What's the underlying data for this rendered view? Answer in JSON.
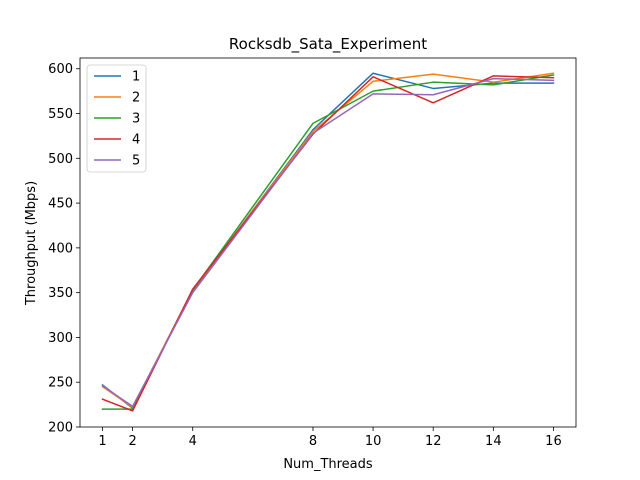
{
  "chart_data": {
    "type": "line",
    "title": "Rocksdb_Sata_Experiment",
    "xlabel": "Num_Threads",
    "ylabel": "Throughput (Mbps)",
    "x": [
      1,
      2,
      4,
      8,
      10,
      12,
      14,
      16
    ],
    "xticks": [
      1,
      2,
      4,
      8,
      10,
      12,
      14,
      16
    ],
    "yticks": [
      200,
      250,
      300,
      350,
      400,
      450,
      500,
      550,
      600
    ],
    "xlim": [
      0.25,
      16.75
    ],
    "ylim": [
      200,
      612
    ],
    "grid": false,
    "legend_position": "upper-left",
    "series": [
      {
        "name": "1",
        "color": "#1f77b4",
        "values": [
          247,
          221,
          352,
          532,
          595,
          578,
          584,
          584
        ]
      },
      {
        "name": "2",
        "color": "#ff7f0e",
        "values": [
          245,
          222,
          353,
          530,
          586,
          594,
          585,
          595
        ]
      },
      {
        "name": "3",
        "color": "#2ca02c",
        "values": [
          220,
          220,
          353,
          539,
          575,
          585,
          582,
          593
        ]
      },
      {
        "name": "4",
        "color": "#d62728",
        "values": [
          231,
          218,
          354,
          527,
          591,
          562,
          592,
          590
        ]
      },
      {
        "name": "5",
        "color": "#9467bd",
        "values": [
          246,
          223,
          350,
          528,
          572,
          571,
          589,
          587
        ]
      }
    ]
  }
}
